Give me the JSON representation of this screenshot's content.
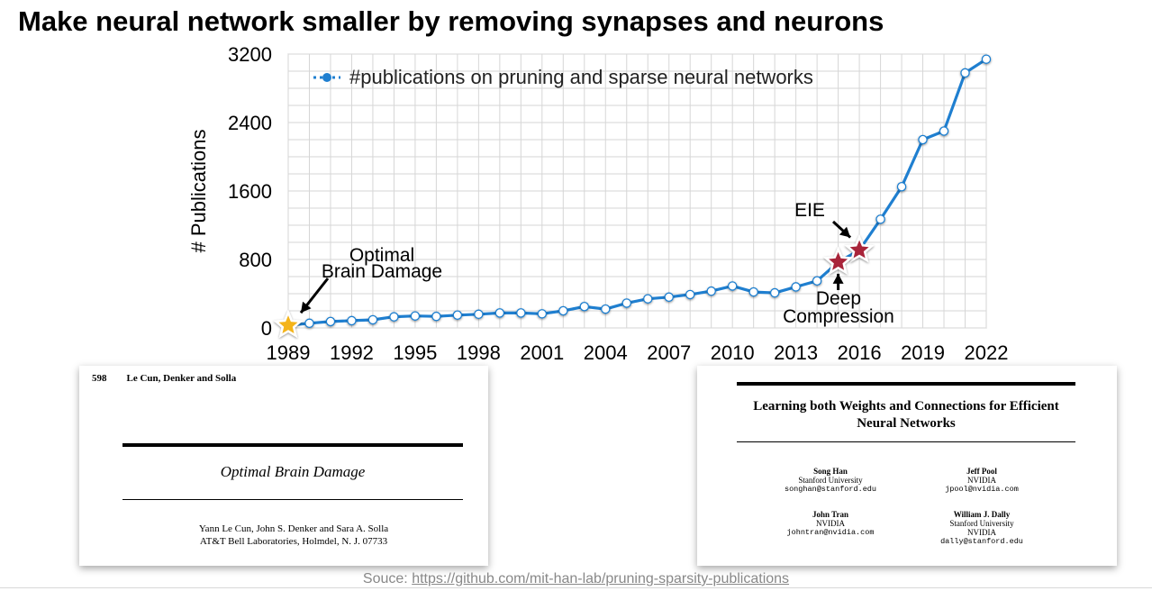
{
  "slide": {
    "title": "Make neural network smaller by removing synapses and neurons",
    "source_label": "Souce:",
    "source_link": "https://github.com/mit-han-lab/pruning-sparsity-publications"
  },
  "chart_data": {
    "type": "line",
    "title": "",
    "xlabel": "",
    "ylabel": "# Publications",
    "xlim": [
      1989,
      2022
    ],
    "ylim": [
      0,
      3200
    ],
    "xticks": [
      1989,
      1992,
      1995,
      1998,
      2001,
      2004,
      2007,
      2010,
      2013,
      2016,
      2019,
      2022
    ],
    "yticks": [
      0,
      800,
      1600,
      2400,
      3200
    ],
    "grid": true,
    "legend_position": "top-left",
    "series": [
      {
        "name": "#publications on pruning and sparse neural networks",
        "color": "#1f7fd0",
        "x": [
          1989,
          1990,
          1991,
          1992,
          1993,
          1994,
          1995,
          1996,
          1997,
          1998,
          1999,
          2000,
          2001,
          2002,
          2003,
          2004,
          2005,
          2006,
          2007,
          2008,
          2009,
          2010,
          2011,
          2012,
          2013,
          2014,
          2015,
          2016,
          2017,
          2018,
          2019,
          2020,
          2021,
          2022
        ],
        "y": [
          30,
          55,
          75,
          85,
          95,
          130,
          140,
          135,
          150,
          160,
          175,
          175,
          165,
          200,
          250,
          220,
          290,
          340,
          360,
          390,
          430,
          490,
          420,
          410,
          480,
          550,
          770,
          910,
          1270,
          1650,
          2200,
          2300,
          2980,
          3140
        ]
      }
    ],
    "annotations": [
      {
        "label_lines": [
          "Optimal",
          "Brain Damage"
        ],
        "x": 1989,
        "y": 30,
        "marker": "gold-star"
      },
      {
        "label_lines": [
          "EIE"
        ],
        "x": 2016,
        "y": 910,
        "marker": "red-star"
      },
      {
        "label_lines": [
          "Deep",
          "Compression"
        ],
        "x": 2015,
        "y": 770,
        "marker": "red-star"
      }
    ]
  },
  "paper_left": {
    "page_number": "598",
    "running_head": "Le Cun, Denker and Solla",
    "title": "Optimal Brain Damage",
    "authors": "Yann Le Cun, John S. Denker and Sara A. Solla",
    "affiliation": "AT&T Bell Laboratories, Holmdel, N. J. 07733"
  },
  "paper_right": {
    "title": "Learning both Weights and Connections for Efficient Neural Networks",
    "authors": [
      {
        "name": "Song Han",
        "affiliation": "Stanford University",
        "email": "songhan@stanford.edu"
      },
      {
        "name": "Jeff Pool",
        "affiliation": "NVIDIA",
        "email": "jpool@nvidia.com"
      },
      {
        "name": "John Tran",
        "affiliation": "NVIDIA",
        "email": "johntran@nvidia.com"
      },
      {
        "name": "William J. Dally",
        "affiliation": "Stanford University",
        "affiliation2": "NVIDIA",
        "email": "dally@stanford.edu"
      }
    ]
  }
}
